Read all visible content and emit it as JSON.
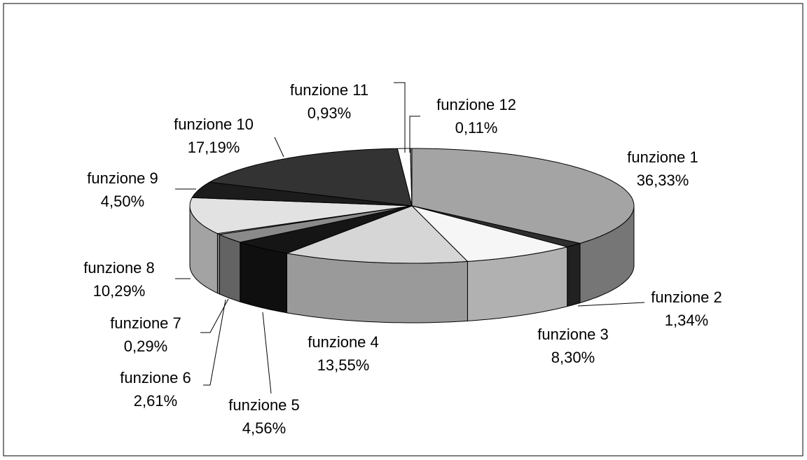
{
  "chart_data": {
    "type": "pie3d",
    "categories": [
      "funzione 1",
      "funzione 2",
      "funzione 3",
      "funzione 4",
      "funzione 5",
      "funzione 6",
      "funzione 7",
      "funzione 8",
      "funzione 9",
      "funzione 10",
      "funzione 11",
      "funzione 12"
    ],
    "values": [
      36.33,
      1.34,
      8.3,
      13.55,
      4.56,
      2.61,
      0.29,
      10.29,
      4.5,
      17.19,
      0.93,
      0.11
    ],
    "value_labels": [
      "36,33%",
      "1,34%",
      "8,30%",
      "13,55%",
      "4,56%",
      "2,61%",
      "0,29%",
      "10,29%",
      "4,50%",
      "17,19%",
      "0,93%",
      "0,11%"
    ],
    "colors": [
      "#a4a4a4",
      "#2e2e2e",
      "#f6f6f6",
      "#d6d6d6",
      "#151515",
      "#8a8a8a",
      "#c4c4c4",
      "#e2e2e2",
      "#1c1c1c",
      "#333333",
      "#ffffff",
      "#9a9a9a"
    ]
  }
}
